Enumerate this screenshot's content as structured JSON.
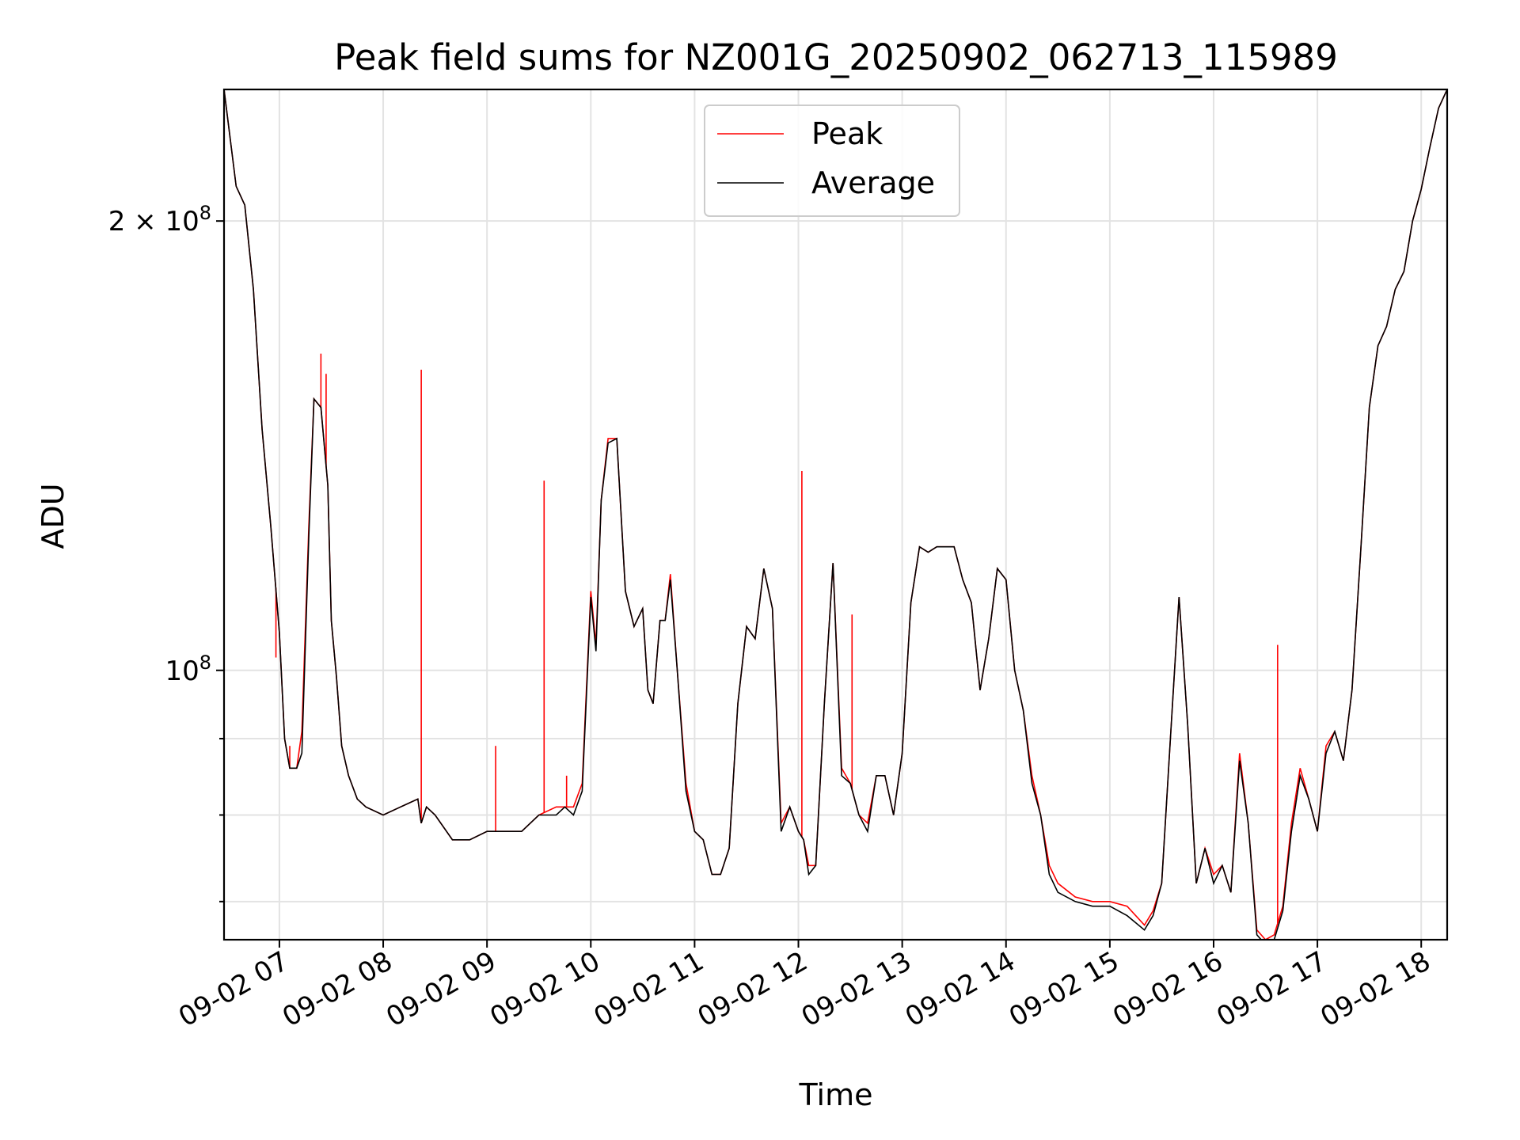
{
  "chart_data": {
    "type": "line",
    "title": "Peak field sums for NZ001G_20250902_062713_115989",
    "xlabel": "Time",
    "ylabel": "ADU",
    "yscale": "log",
    "xlim": [
      "2025-09-02 06:28",
      "2025-09-02 18:15"
    ],
    "ylim": [
      66000000,
      245000000
    ],
    "x_ticks": [
      "09-02 07",
      "09-02 08",
      "09-02 09",
      "09-02 10",
      "09-02 11",
      "09-02 12",
      "09-02 13",
      "09-02 14",
      "09-02 15",
      "09-02 16",
      "09-02 17",
      "09-02 18"
    ],
    "y_ticks": [
      {
        "value": 200000000,
        "label": "2 × 10",
        "exp": "8"
      },
      {
        "value": 100000000,
        "label": "10",
        "exp": "8"
      }
    ],
    "y_minor_ticks": [
      70000000,
      80000000,
      90000000
    ],
    "grid": true,
    "legend_position": "top-center",
    "series": [
      {
        "name": "Peak",
        "color": "#ff0000",
        "style": "thin solid line"
      },
      {
        "name": "Average",
        "color": "#000000",
        "style": "thin solid line"
      }
    ],
    "x": [
      "06:28",
      "06:35",
      "06:40",
      "06:45",
      "06:50",
      "06:55",
      "07:00",
      "07:03",
      "07:06",
      "07:10",
      "07:13",
      "07:17",
      "07:20",
      "07:24",
      "07:28",
      "07:30",
      "07:33",
      "07:36",
      "07:40",
      "07:45",
      "07:50",
      "08:00",
      "08:10",
      "08:20",
      "08:22",
      "08:25",
      "08:30",
      "08:40",
      "08:44",
      "08:50",
      "09:00",
      "09:10",
      "09:20",
      "09:30",
      "09:40",
      "09:45",
      "09:50",
      "09:55",
      "10:00",
      "10:03",
      "10:06",
      "10:10",
      "10:15",
      "10:20",
      "10:25",
      "10:30",
      "10:33",
      "10:36",
      "10:40",
      "10:43",
      "10:46",
      "10:50",
      "10:55",
      "11:00",
      "11:05",
      "11:10",
      "11:15",
      "11:20",
      "11:25",
      "11:30",
      "11:35",
      "11:40",
      "11:45",
      "11:50",
      "11:55",
      "12:00",
      "12:03",
      "12:06",
      "12:10",
      "12:15",
      "12:20",
      "12:25",
      "12:30",
      "12:35",
      "12:40",
      "12:45",
      "12:50",
      "12:55",
      "13:00",
      "13:05",
      "13:10",
      "13:15",
      "13:20",
      "13:25",
      "13:30",
      "13:35",
      "13:40",
      "13:45",
      "13:50",
      "13:55",
      "14:00",
      "14:05",
      "14:10",
      "14:15",
      "14:20",
      "14:25",
      "14:30",
      "14:40",
      "14:50",
      "15:00",
      "15:10",
      "15:20",
      "15:25",
      "15:30",
      "15:35",
      "15:40",
      "15:45",
      "15:50",
      "15:55",
      "16:00",
      "16:05",
      "16:10",
      "16:15",
      "16:20",
      "16:25",
      "16:30",
      "16:35",
      "16:40",
      "16:45",
      "16:50",
      "16:55",
      "17:00",
      "17:05",
      "17:10",
      "17:15",
      "17:20",
      "17:25",
      "17:30",
      "17:35",
      "17:40",
      "17:45",
      "17:50",
      "17:55",
      "18:00",
      "18:05",
      "18:10",
      "18:15"
    ],
    "average": [
      245,
      211,
      205,
      180,
      145,
      125,
      106,
      90,
      86,
      86,
      88,
      123,
      152,
      150,
      133,
      108,
      99,
      89,
      85,
      82,
      81,
      80,
      81,
      82,
      79,
      81,
      80,
      77,
      77,
      77,
      78,
      78,
      78,
      80,
      80,
      81,
      80,
      83,
      112,
      103,
      130,
      142,
      143,
      113,
      107,
      110,
      97,
      95,
      108,
      108,
      115,
      100,
      83,
      78,
      77,
      73,
      73,
      76,
      95,
      107,
      105,
      117,
      110,
      78,
      81,
      78,
      77,
      73,
      74,
      95,
      118,
      85,
      84,
      80,
      78,
      85,
      85,
      80,
      88,
      111,
      121,
      120,
      121,
      121,
      121,
      115,
      111,
      97,
      105,
      117,
      115,
      100,
      94,
      84,
      80,
      73,
      71,
      70,
      69.5,
      69.5,
      68.5,
      67,
      68.5,
      72,
      90,
      112,
      92,
      72,
      76,
      72,
      74,
      71,
      87,
      79,
      66.5,
      65.5,
      66,
      69,
      78,
      85,
      82,
      78,
      88,
      91,
      87,
      97,
      120,
      150,
      165,
      170,
      180,
      185,
      200,
      210,
      224,
      238,
      245
    ],
    "peak": [
      245,
      211,
      205,
      180,
      145,
      125,
      106,
      90,
      86,
      86,
      91,
      125,
      152,
      150,
      133,
      108,
      99,
      89,
      85,
      82,
      81,
      80,
      81,
      82,
      79,
      81,
      80,
      77,
      77,
      77,
      78,
      78,
      78,
      80,
      81,
      81,
      81,
      84,
      113,
      104,
      130,
      143,
      143,
      113,
      107,
      110,
      97,
      95,
      108,
      108,
      116,
      100,
      84,
      78,
      77,
      73,
      73,
      76,
      95,
      107,
      105,
      117,
      110,
      79,
      81,
      78,
      77,
      74,
      74,
      95,
      118,
      86,
      84,
      80,
      79,
      85,
      85,
      80,
      88,
      111,
      121,
      120,
      121,
      121,
      121,
      115,
      111,
      97,
      105,
      117,
      115,
      100,
      94,
      85,
      80,
      74,
      72,
      70.5,
      70,
      70,
      69.5,
      67.5,
      69,
      72,
      90,
      112,
      92,
      72,
      76,
      73,
      74,
      71,
      88,
      79,
      67,
      66,
      66.5,
      69.5,
      79,
      86,
      82,
      78,
      89,
      91,
      87,
      97,
      120,
      150,
      165,
      170,
      180,
      185,
      200,
      210,
      224,
      238,
      245
    ],
    "peak_spikes": [
      {
        "x": "06:58",
        "value": 102
      },
      {
        "x": "07:06",
        "value": 89
      },
      {
        "x": "07:24",
        "value": 163
      },
      {
        "x": "07:27",
        "value": 158
      },
      {
        "x": "08:22",
        "value": 159
      },
      {
        "x": "09:05",
        "value": 89
      },
      {
        "x": "09:33",
        "value": 134
      },
      {
        "x": "09:46",
        "value": 85
      },
      {
        "x": "12:02",
        "value": 136
      },
      {
        "x": "12:31",
        "value": 109
      },
      {
        "x": "16:37",
        "value": 104
      }
    ],
    "value_unit": "millions"
  }
}
